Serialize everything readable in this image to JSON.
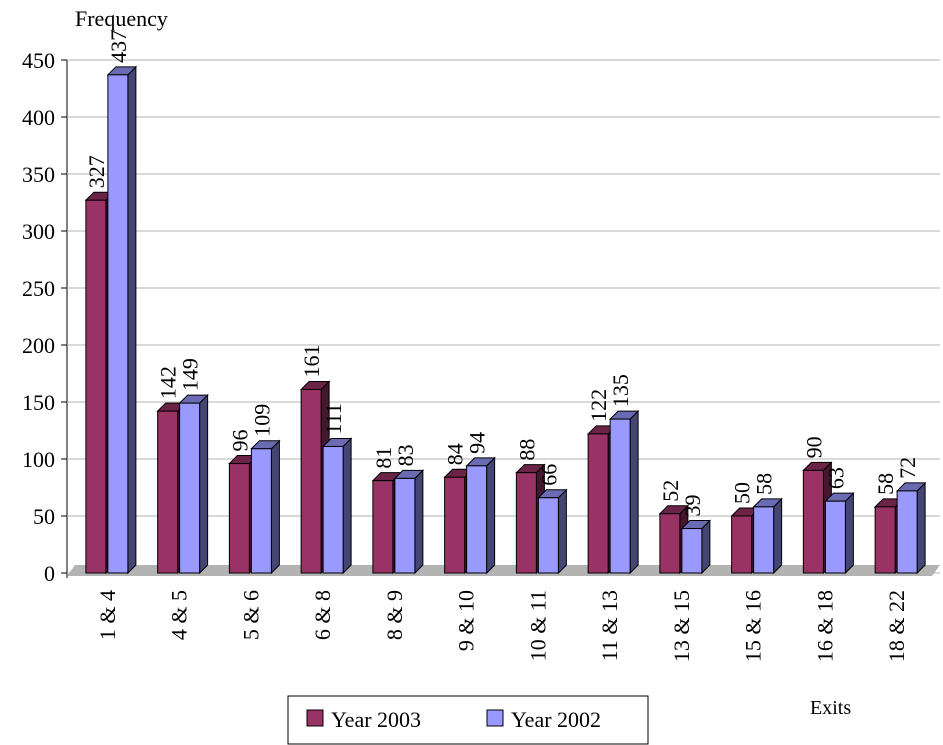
{
  "chart_data": {
    "type": "bar",
    "y_label": "Frequency",
    "x_label": "Exits",
    "categories": [
      "1 & 4",
      "4 & 5",
      "5 & 6",
      "6 & 8",
      "8 & 9",
      "9 & 10",
      "10 & 11",
      "11 & 13",
      "13 & 15",
      "15 & 16",
      "16 & 18",
      "18 & 22"
    ],
    "series": [
      {
        "name": "Year 2003",
        "color": "#993366",
        "values": [
          327,
          142,
          96,
          161,
          81,
          84,
          88,
          122,
          52,
          50,
          90,
          58
        ]
      },
      {
        "name": "Year 2002",
        "color": "#9999ff",
        "values": [
          437,
          149,
          109,
          111,
          83,
          94,
          66,
          135,
          39,
          58,
          63,
          72
        ]
      }
    ],
    "ylim": [
      0,
      450
    ],
    "yticks": [
      0,
      50,
      100,
      150,
      200,
      250,
      300,
      350,
      400,
      450
    ],
    "grid": true,
    "legend": "bottom"
  }
}
